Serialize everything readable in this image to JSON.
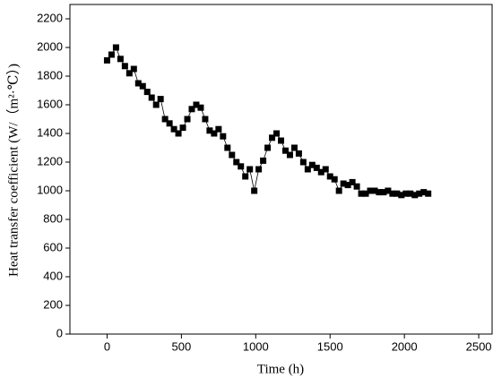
{
  "chart_data": {
    "type": "line",
    "x_label": "Time (h)",
    "y_label": "Heat transfer coefficient (W/（m²·℃）)",
    "x": [
      0,
      30,
      60,
      90,
      120,
      150,
      180,
      210,
      240,
      270,
      300,
      330,
      360,
      390,
      420,
      450,
      480,
      510,
      540,
      570,
      600,
      630,
      660,
      690,
      720,
      750,
      780,
      810,
      840,
      870,
      900,
      930,
      960,
      990,
      1020,
      1050,
      1080,
      1110,
      1140,
      1170,
      1200,
      1230,
      1260,
      1290,
      1320,
      1350,
      1380,
      1410,
      1440,
      1470,
      1500,
      1530,
      1560,
      1590,
      1620,
      1650,
      1680,
      1710,
      1740,
      1770,
      1800,
      1830,
      1860,
      1890,
      1920,
      1950,
      1980,
      2010,
      2040,
      2070,
      2100,
      2130,
      2160
    ],
    "series": [
      {
        "color": "#000000",
        "values": [
          1910,
          1950,
          2000,
          1920,
          1870,
          1820,
          1850,
          1750,
          1730,
          1690,
          1650,
          1600,
          1640,
          1500,
          1470,
          1430,
          1400,
          1440,
          1500,
          1570,
          1600,
          1580,
          1500,
          1420,
          1400,
          1430,
          1380,
          1300,
          1250,
          1200,
          1170,
          1100,
          1150,
          1000,
          1150,
          1210,
          1300,
          1370,
          1400,
          1350,
          1280,
          1250,
          1300,
          1260,
          1200,
          1150,
          1180,
          1160,
          1130,
          1150,
          1100,
          1080,
          1000,
          1050,
          1040,
          1060,
          1030,
          980,
          980,
          1000,
          1000,
          990,
          990,
          1000,
          980,
          980,
          970,
          980,
          980,
          970,
          980,
          990,
          980
        ]
      }
    ],
    "xlim": [
      -250,
      2590
    ],
    "xticks": [
      0,
      500,
      1000,
      1500,
      2000,
      2500
    ],
    "ylim": [
      0,
      2300
    ],
    "yticks": [
      0,
      200,
      400,
      600,
      800,
      1000,
      1200,
      1400,
      1600,
      1800,
      2000,
      2200
    ]
  }
}
